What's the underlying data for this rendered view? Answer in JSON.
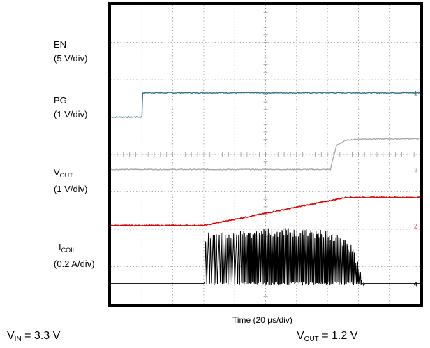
{
  "chart_data": {
    "type": "line",
    "xlabel": "Time (20 µs/div)",
    "grid": true,
    "divisions": {
      "x": 10,
      "y": 8
    },
    "series": [
      {
        "name": "EN",
        "scale": "(5 V/div)",
        "color": "#2f6b8a",
        "points": [
          [
            0,
            5.0
          ],
          [
            1,
            5.0
          ],
          [
            1.0,
            5.65
          ],
          [
            10,
            5.65
          ]
        ]
      },
      {
        "name": "PG",
        "scale": "(1 V/div)",
        "color": "#a6a6a6",
        "points": [
          [
            0,
            3.6
          ],
          [
            7.1,
            3.6
          ],
          [
            7.15,
            3.8
          ],
          [
            7.3,
            4.25
          ],
          [
            7.6,
            4.38
          ],
          [
            8,
            4.41
          ],
          [
            10,
            4.42
          ]
        ]
      },
      {
        "name": "VOUT",
        "scale": "(1 V/div)",
        "color": "#e00000",
        "points": [
          [
            0,
            2.1
          ],
          [
            3.0,
            2.1
          ],
          [
            7.6,
            2.85
          ],
          [
            10,
            2.85
          ]
        ]
      },
      {
        "name": "ICOIL",
        "scale": "(0.2 A/div)",
        "color": "#000000",
        "points": [
          [
            0,
            0.55
          ],
          [
            3.0,
            0.55
          ],
          [
            3.0,
            1.9
          ],
          [
            4.0,
            1.98
          ],
          [
            5.5,
            2.05
          ],
          [
            7.0,
            1.98
          ],
          [
            7.4,
            1.85
          ],
          [
            7.8,
            1.6
          ],
          [
            8.2,
            0.55
          ],
          [
            10,
            0.55
          ]
        ]
      }
    ]
  },
  "labels": {
    "en_name": "EN",
    "en_scale": "(5 V/div)",
    "pg_name": "PG",
    "pg_scale": "(1 V/div)",
    "vout_name": "V",
    "vout_sub": "OUT",
    "vout_scale": "(1 V/div)",
    "icoil_name": "I",
    "icoil_sub": "COIL",
    "icoil_scale": "(0.2 A/div)",
    "markers": [
      "1",
      "3",
      "2",
      "4"
    ]
  },
  "conditions": {
    "vin_name": "V",
    "vin_sub": "IN",
    "vin_value": "= 3.3 V",
    "vout_name": "V",
    "vout_sub": "OUT",
    "vout_value": "= 1.2 V"
  }
}
